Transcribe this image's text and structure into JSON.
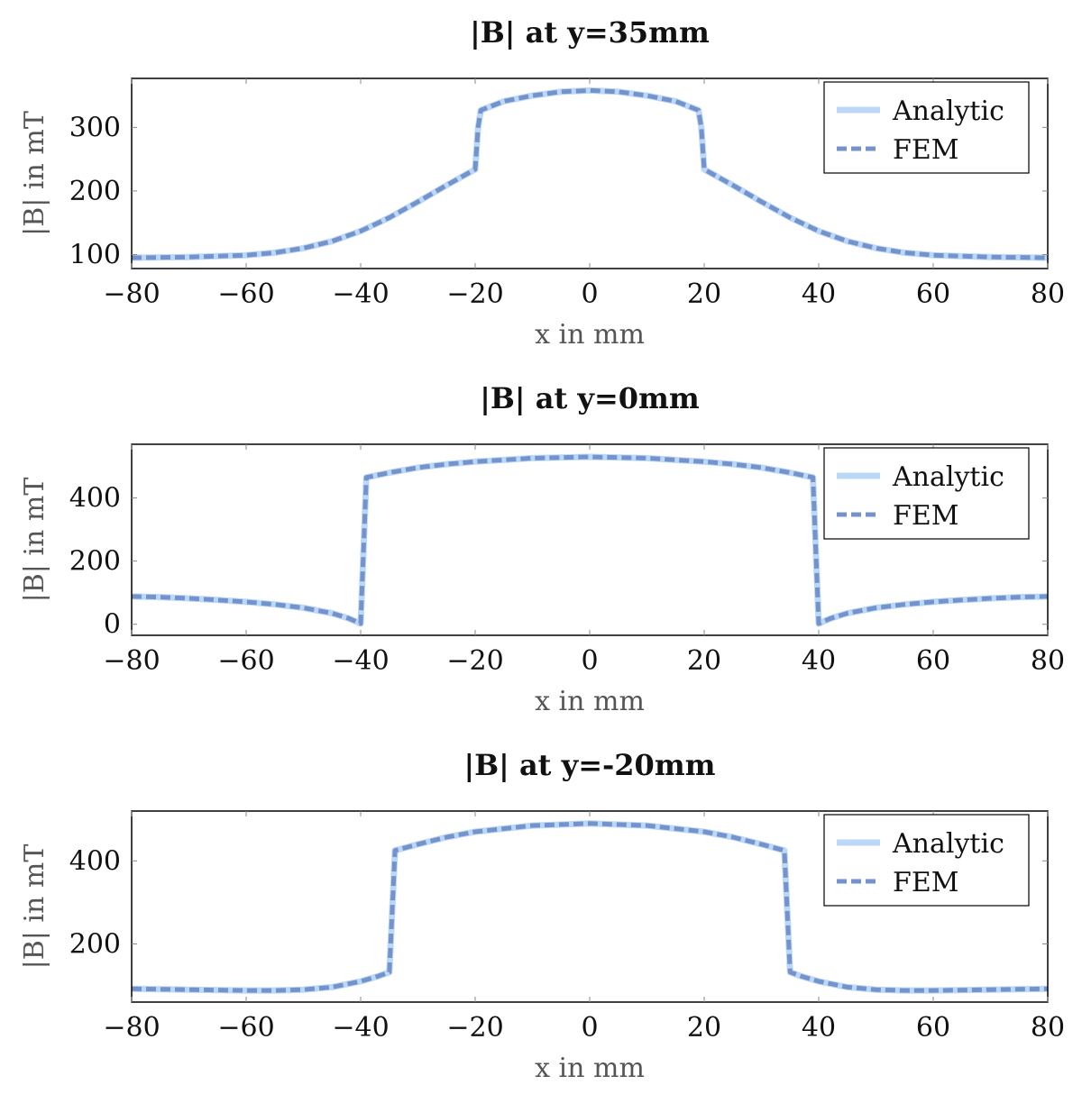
{
  "chart_data": [
    {
      "type": "line",
      "title": "|B| at y=35mm",
      "xlabel": "x in mm",
      "ylabel": "|B| in mT",
      "xlim": [
        -80,
        80
      ],
      "ylim": [
        78,
        377
      ],
      "xticks": [
        -80,
        -60,
        -40,
        -20,
        0,
        20,
        40,
        60,
        80
      ],
      "xtick_labels": [
        "−80",
        "−60",
        "−40",
        "−20",
        "0",
        "20",
        "40",
        "60",
        "80"
      ],
      "yticks": [
        100,
        200,
        300
      ],
      "ytick_labels": [
        "100",
        "200",
        "300"
      ],
      "grid": false,
      "legend": "top-right",
      "series": [
        {
          "name": "Analytic",
          "color": "#bdd7f7",
          "style": "solid",
          "x": [
            -80,
            -70,
            -60,
            -55,
            -50,
            -45,
            -40,
            -35,
            -30,
            -25,
            -20,
            -19.5,
            -19,
            -15,
            -10,
            -5,
            0,
            5,
            10,
            15,
            19,
            19.5,
            20,
            25,
            30,
            35,
            40,
            45,
            50,
            55,
            60,
            70,
            80
          ],
          "y": [
            95,
            96,
            99,
            103,
            110,
            121,
            137,
            158,
            183,
            209,
            234,
            300,
            327,
            341,
            350,
            356,
            358,
            356,
            350,
            341,
            327,
            300,
            234,
            209,
            183,
            158,
            137,
            121,
            110,
            103,
            99,
            96,
            95
          ]
        },
        {
          "name": "FEM",
          "color": "#7393cc",
          "style": "dashed",
          "x": [
            -80,
            -70,
            -60,
            -55,
            -50,
            -45,
            -40,
            -35,
            -30,
            -25,
            -20,
            -19.5,
            -19,
            -15,
            -10,
            -5,
            0,
            5,
            10,
            15,
            19,
            19.5,
            20,
            25,
            30,
            35,
            40,
            45,
            50,
            55,
            60,
            70,
            80
          ],
          "y": [
            95,
            96,
            99,
            103,
            110,
            121,
            137,
            158,
            183,
            209,
            234,
            300,
            327,
            341,
            350,
            356,
            358,
            356,
            350,
            341,
            327,
            300,
            234,
            209,
            183,
            158,
            137,
            121,
            110,
            103,
            99,
            96,
            95
          ]
        }
      ]
    },
    {
      "type": "line",
      "title": "|B| at y=0mm",
      "xlabel": "x in mm",
      "ylabel": "|B| in mT",
      "xlim": [
        -80,
        80
      ],
      "ylim": [
        -35,
        570
      ],
      "xticks": [
        -80,
        -60,
        -40,
        -20,
        0,
        20,
        40,
        60,
        80
      ],
      "xtick_labels": [
        "−80",
        "−60",
        "−40",
        "−20",
        "0",
        "20",
        "40",
        "60",
        "80"
      ],
      "yticks": [
        0,
        200,
        400
      ],
      "ytick_labels": [
        "0",
        "200",
        "400"
      ],
      "grid": false,
      "legend": "top-right",
      "series": [
        {
          "name": "Analytic",
          "color": "#bdd7f7",
          "style": "solid",
          "x": [
            -80,
            -75,
            -70,
            -65,
            -60,
            -55,
            -50,
            -45,
            -42,
            -40,
            -39,
            -35,
            -30,
            -25,
            -20,
            -10,
            0,
            10,
            20,
            25,
            30,
            35,
            39,
            40,
            42,
            45,
            50,
            55,
            60,
            65,
            70,
            75,
            80
          ],
          "y": [
            88,
            86,
            82,
            77,
            71,
            63,
            52,
            35,
            18,
            2,
            465,
            480,
            496,
            507,
            515,
            526,
            530,
            526,
            515,
            507,
            496,
            480,
            465,
            2,
            18,
            35,
            52,
            63,
            71,
            77,
            82,
            86,
            88
          ]
        },
        {
          "name": "FEM",
          "color": "#7393cc",
          "style": "dashed",
          "x": [
            -80,
            -75,
            -70,
            -65,
            -60,
            -55,
            -50,
            -45,
            -42,
            -40,
            -39,
            -35,
            -30,
            -25,
            -20,
            -10,
            0,
            10,
            20,
            25,
            30,
            35,
            39,
            40,
            42,
            45,
            50,
            55,
            60,
            65,
            70,
            75,
            80
          ],
          "y": [
            88,
            86,
            82,
            77,
            71,
            63,
            52,
            35,
            18,
            2,
            465,
            480,
            496,
            507,
            515,
            526,
            530,
            526,
            515,
            507,
            496,
            480,
            465,
            2,
            18,
            35,
            52,
            63,
            71,
            77,
            82,
            86,
            88
          ]
        }
      ]
    },
    {
      "type": "line",
      "title": "|B| at y=-20mm",
      "xlabel": "x in mm",
      "ylabel": "|B| in mT",
      "xlim": [
        -80,
        80
      ],
      "ylim": [
        60,
        520
      ],
      "xticks": [
        -80,
        -60,
        -40,
        -20,
        0,
        20,
        40,
        60,
        80
      ],
      "xtick_labels": [
        "−80",
        "−60",
        "−40",
        "−20",
        "0",
        "20",
        "40",
        "60",
        "80"
      ],
      "yticks": [
        200,
        400
      ],
      "ytick_labels": [
        "200",
        "400"
      ],
      "grid": false,
      "legend": "top-right",
      "series": [
        {
          "name": "Analytic",
          "color": "#bdd7f7",
          "style": "solid",
          "x": [
            -80,
            -70,
            -60,
            -55,
            -50,
            -45,
            -40,
            -37,
            -35,
            -34,
            -30,
            -25,
            -20,
            -10,
            0,
            10,
            20,
            25,
            30,
            34,
            35,
            37,
            40,
            45,
            50,
            55,
            60,
            70,
            80
          ],
          "y": [
            92,
            90,
            88,
            88,
            90,
            96,
            110,
            122,
            132,
            425,
            440,
            457,
            470,
            485,
            490,
            485,
            470,
            457,
            440,
            425,
            132,
            122,
            110,
            96,
            90,
            88,
            88,
            90,
            92
          ]
        },
        {
          "name": "FEM",
          "color": "#7393cc",
          "style": "dashed",
          "x": [
            -80,
            -70,
            -60,
            -55,
            -50,
            -45,
            -40,
            -37,
            -35,
            -34,
            -30,
            -25,
            -20,
            -10,
            0,
            10,
            20,
            25,
            30,
            34,
            35,
            37,
            40,
            45,
            50,
            55,
            60,
            70,
            80
          ],
          "y": [
            92,
            90,
            88,
            88,
            90,
            96,
            110,
            122,
            132,
            425,
            440,
            457,
            470,
            485,
            490,
            485,
            470,
            457,
            440,
            425,
            132,
            122,
            110,
            96,
            90,
            88,
            88,
            90,
            92
          ]
        }
      ]
    }
  ]
}
